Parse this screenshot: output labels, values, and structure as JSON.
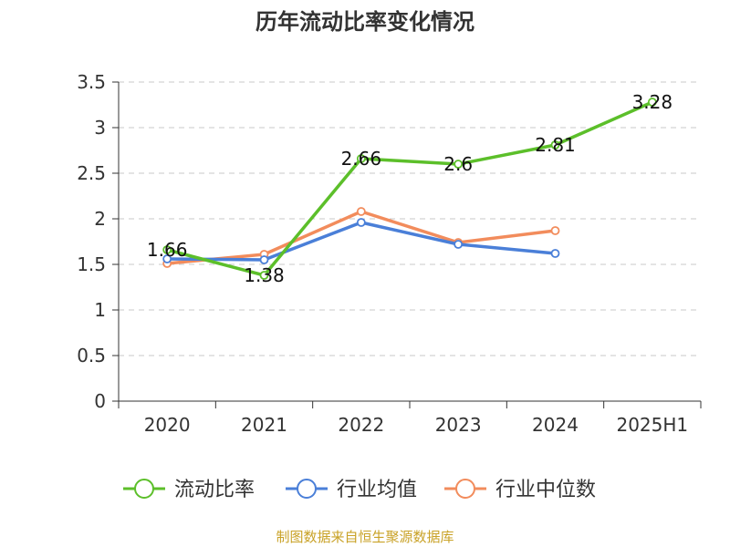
{
  "chart_data": {
    "type": "line",
    "title": "历年流动比率变化情况",
    "categories": [
      "2020",
      "2021",
      "2022",
      "2023",
      "2024",
      "2025H1"
    ],
    "ylim": [
      0,
      3.5
    ],
    "yticks": [
      "0",
      "0.5",
      "1",
      "1.5",
      "2",
      "2.5",
      "3",
      "3.5"
    ],
    "grid": "horizontal dashed",
    "legend_position": "bottom",
    "series": [
      {
        "name": "流动比率",
        "color": "#5cbf2a",
        "values": [
          1.66,
          1.38,
          2.66,
          2.6,
          2.81,
          3.28
        ],
        "labels": [
          "1.66",
          "1.38",
          "2.66",
          "2.6",
          "2.81",
          "3.28"
        ]
      },
      {
        "name": "行业均值",
        "color": "#4a7fd8",
        "values": [
          1.56,
          1.55,
          1.96,
          1.72,
          1.62,
          null
        ]
      },
      {
        "name": "行业中位数",
        "color": "#f28c5c",
        "values": [
          1.51,
          1.61,
          2.08,
          1.74,
          1.87,
          null
        ]
      }
    ]
  },
  "source": "制图数据来自恒生聚源数据库"
}
